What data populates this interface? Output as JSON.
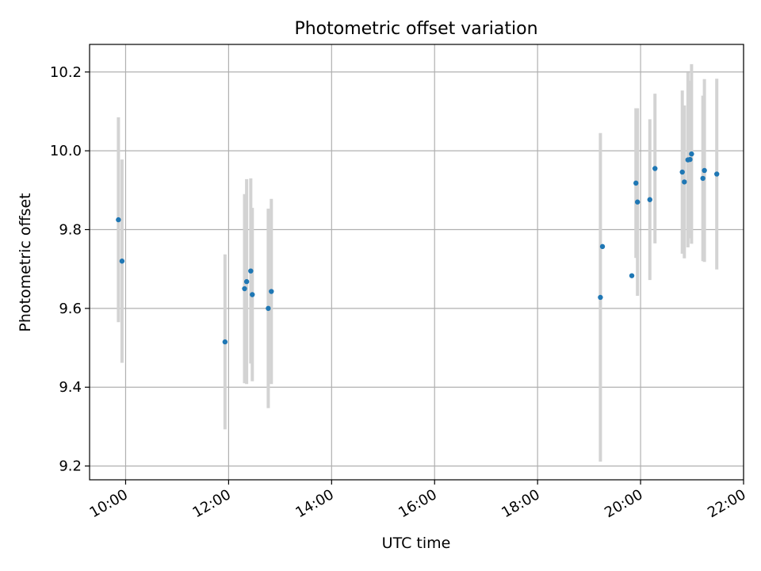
{
  "chart_data": {
    "type": "scatter",
    "title": "Photometric offset variation",
    "xlabel": "UTC time",
    "ylabel": "Photometric offset",
    "x_unit": "hours UTC",
    "xlim": [
      9.3,
      22.0
    ],
    "ylim": [
      9.165,
      10.27
    ],
    "x_ticks": [
      {
        "value": 10,
        "label": "10:00"
      },
      {
        "value": 12,
        "label": "12:00"
      },
      {
        "value": 14,
        "label": "14:00"
      },
      {
        "value": 16,
        "label": "16:00"
      },
      {
        "value": 18,
        "label": "18:00"
      },
      {
        "value": 20,
        "label": "20:00"
      },
      {
        "value": 22,
        "label": "22:00"
      }
    ],
    "y_ticks": [
      {
        "value": 9.2,
        "label": "9.2"
      },
      {
        "value": 9.4,
        "label": "9.4"
      },
      {
        "value": 9.6,
        "label": "9.6"
      },
      {
        "value": 9.8,
        "label": "9.8"
      },
      {
        "value": 10.0,
        "label": "10.0"
      },
      {
        "value": 10.2,
        "label": "10.2"
      }
    ],
    "grid": true,
    "marker_color": "#1f77b4",
    "errorbar_color": "#d3d3d3",
    "points": [
      {
        "x": 9.86,
        "y": 9.825,
        "err": 0.26
      },
      {
        "x": 9.93,
        "y": 9.72,
        "err": 0.258
      },
      {
        "x": 11.93,
        "y": 9.515,
        "err": 0.222
      },
      {
        "x": 12.31,
        "y": 9.65,
        "err": 0.24
      },
      {
        "x": 12.35,
        "y": 9.668,
        "err": 0.26
      },
      {
        "x": 12.43,
        "y": 9.695,
        "err": 0.235
      },
      {
        "x": 12.46,
        "y": 9.635,
        "err": 0.22
      },
      {
        "x": 12.77,
        "y": 9.6,
        "err": 0.253
      },
      {
        "x": 12.83,
        "y": 9.643,
        "err": 0.235
      },
      {
        "x": 19.22,
        "y": 9.628,
        "err": 0.417
      },
      {
        "x": 19.26,
        "y": 9.757,
        "err": 0.0
      },
      {
        "x": 19.83,
        "y": 9.683,
        "err": 0.0
      },
      {
        "x": 19.91,
        "y": 9.918,
        "err": 0.19
      },
      {
        "x": 19.94,
        "y": 9.87,
        "err": 0.238
      },
      {
        "x": 20.18,
        "y": 9.876,
        "err": 0.204
      },
      {
        "x": 20.28,
        "y": 9.955,
        "err": 0.19
      },
      {
        "x": 20.81,
        "y": 9.946,
        "err": 0.207
      },
      {
        "x": 20.85,
        "y": 9.921,
        "err": 0.194
      },
      {
        "x": 20.92,
        "y": 9.977,
        "err": 0.222
      },
      {
        "x": 20.96,
        "y": 9.978,
        "err": 0.2
      },
      {
        "x": 20.99,
        "y": 9.992,
        "err": 0.228
      },
      {
        "x": 21.21,
        "y": 9.93,
        "err": 0.21
      },
      {
        "x": 21.24,
        "y": 9.95,
        "err": 0.232
      },
      {
        "x": 21.48,
        "y": 9.941,
        "err": 0.242
      }
    ]
  }
}
